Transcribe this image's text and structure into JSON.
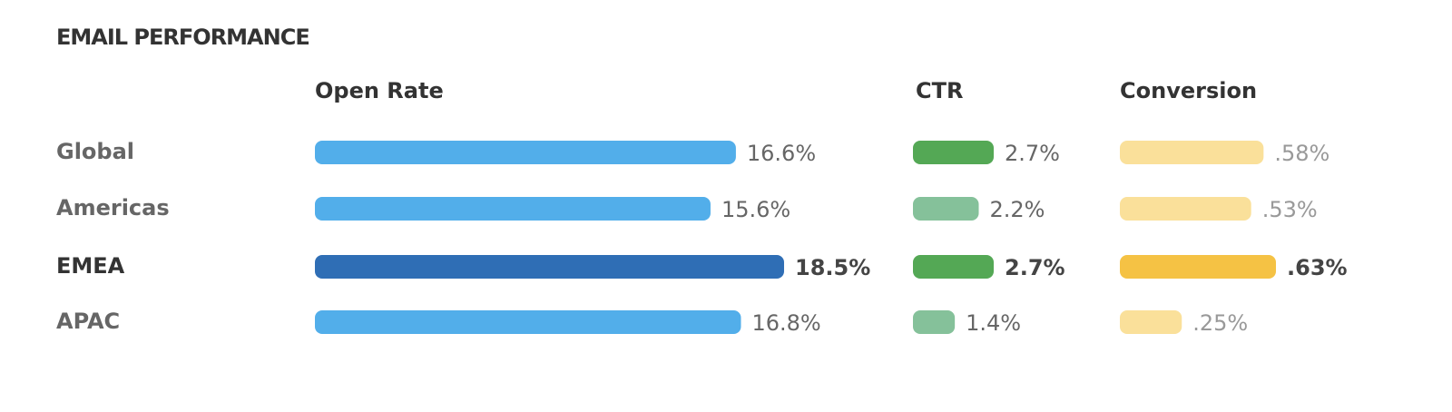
{
  "chart_data": {
    "type": "bar",
    "title": "EMAIL PERFORMANCE",
    "categories": [
      "Global",
      "Americas",
      "EMEA",
      "APAC"
    ],
    "highlight": "EMEA",
    "series": [
      {
        "name": "Open Rate",
        "colors": [
          "#52aeea",
          "#52aeea",
          "#2f6eb5",
          "#52aeea"
        ],
        "values": [
          16.6,
          15.6,
          18.5,
          16.8
        ],
        "value_labels": [
          "16.6%",
          "15.6%",
          "18.5%",
          "16.8%"
        ]
      },
      {
        "name": "CTR",
        "colors": [
          "#54a855",
          "#85c19a",
          "#54a855",
          "#85c19a"
        ],
        "values": [
          2.7,
          2.2,
          2.7,
          1.4
        ],
        "value_labels": [
          "2.7%",
          "2.2%",
          "2.7%",
          "1.4%"
        ]
      },
      {
        "name": "Conversion",
        "colors": [
          "#fae09a",
          "#fae09a",
          "#f5c244",
          "#fae09a"
        ],
        "values": [
          0.58,
          0.53,
          0.63,
          0.25
        ],
        "value_labels": [
          ".58%",
          ".53%",
          ".63%",
          ".25%"
        ]
      }
    ]
  }
}
